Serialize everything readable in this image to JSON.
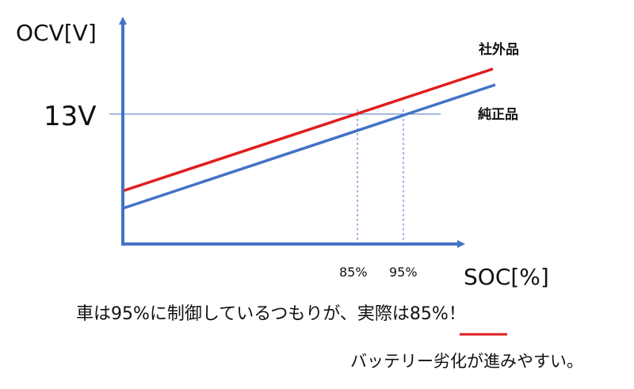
{
  "axes": {
    "y_label": "OCV[V]",
    "x_label": "SOC[%]",
    "y_mark_label": "13V",
    "x_mark_labels": [
      "85%",
      "95%"
    ]
  },
  "chart_data": {
    "type": "line",
    "ylabel": "OCV[V]",
    "xlabel": "SOC[%]",
    "reference": {
      "y": "13V",
      "x_at_13V": {
        "社外品": "85%",
        "純正品": "95%"
      }
    },
    "series": [
      {
        "name": "社外品",
        "color": "#e01e1e"
      },
      {
        "name": "純正品",
        "color": "#4472c4"
      }
    ]
  },
  "colors": {
    "axis": "#4472c4",
    "aftermarket": "#e01e1e",
    "genuine": "#4472c4",
    "guide": "#4472c4",
    "emphasis": "#e01e1e"
  },
  "caption": {
    "text": "車は95%に制御しているつもりが、実際は85%！",
    "emphasis": "85%"
  },
  "note": "バッテリー劣化が進みやすい。"
}
